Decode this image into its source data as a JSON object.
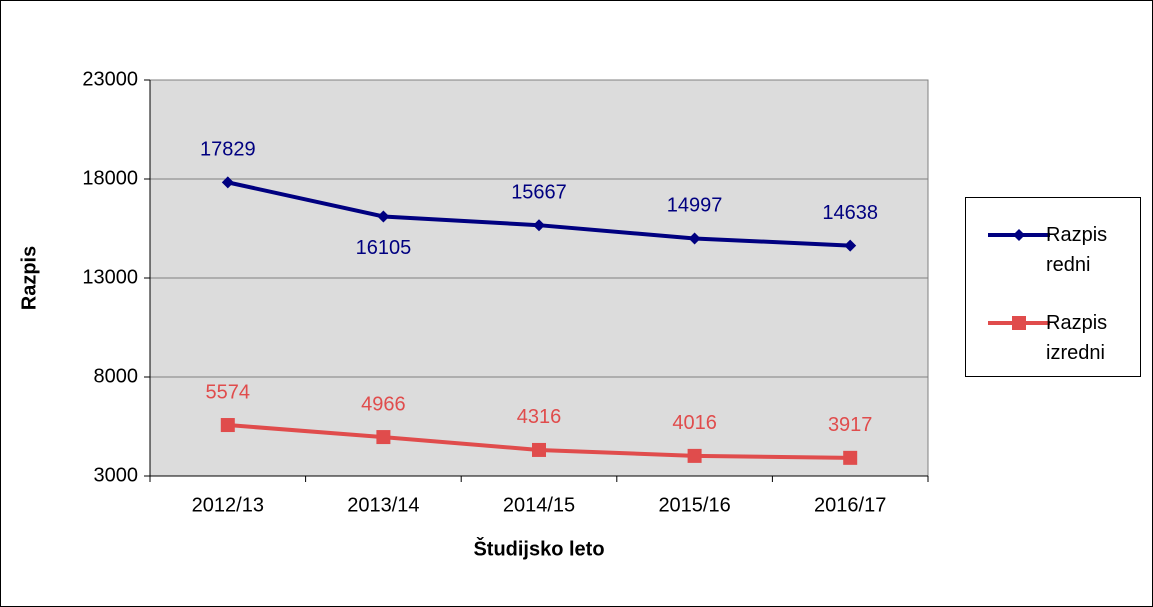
{
  "chart_data": {
    "type": "line",
    "x_label": "Študijsko leto",
    "y_label": "Razpis",
    "categories": [
      "2012/13",
      "2013/14",
      "2014/15",
      "2015/16",
      "2016/17"
    ],
    "series": [
      {
        "name": "Razpis redni",
        "color": "#000080",
        "marker": "diamond",
        "values": [
          17829,
          16105,
          15667,
          14997,
          14638
        ]
      },
      {
        "name": "Razpis izredni",
        "color": "#e04c4c",
        "marker": "square",
        "values": [
          5574,
          4966,
          4316,
          4016,
          3917
        ]
      }
    ],
    "ylim": [
      3000,
      23000
    ],
    "yticks": [
      3000,
      8000,
      13000,
      18000,
      23000
    ],
    "grid": true,
    "legend": "right"
  }
}
